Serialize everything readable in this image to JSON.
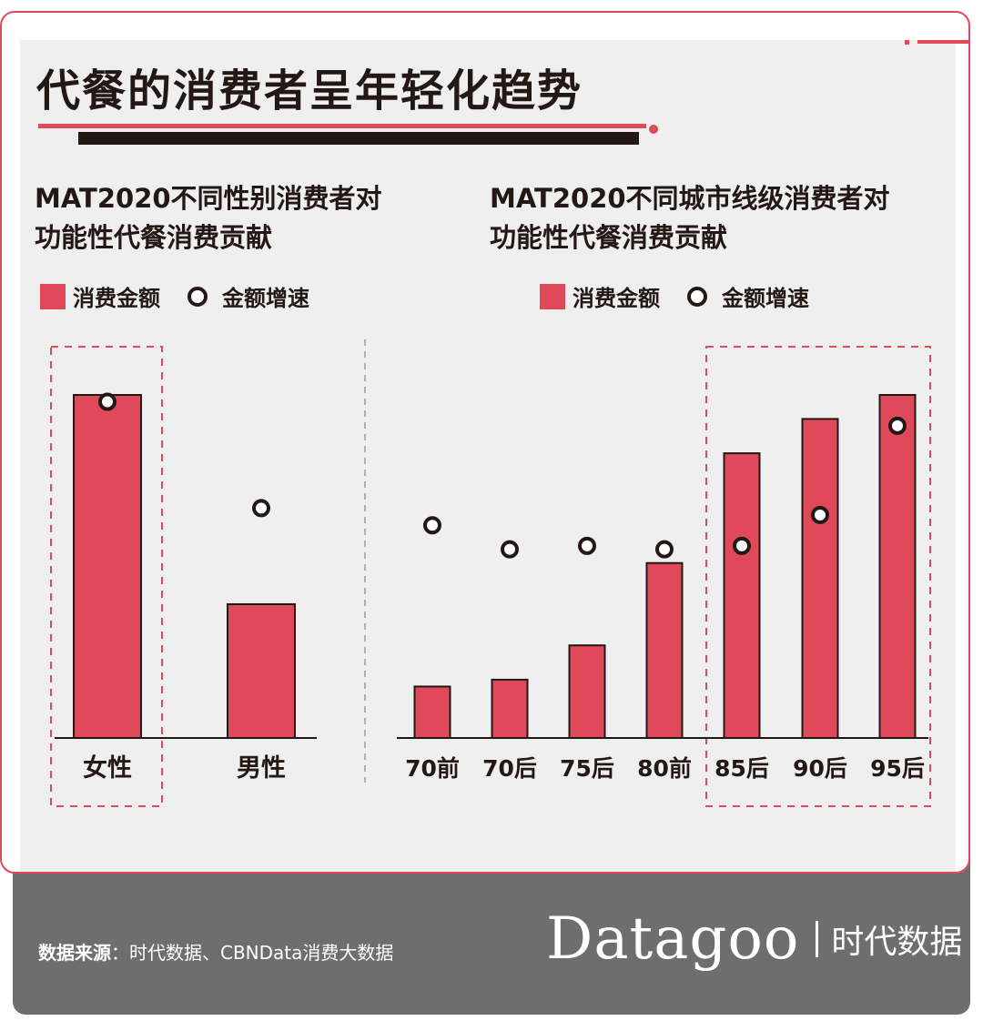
{
  "title": "代餐的消费者呈年轻化趋势",
  "colors": {
    "accent": "#e0495a",
    "dark": "#231815",
    "panel": "#efefef",
    "footer": "#6e6e6e"
  },
  "chart_data": [
    {
      "type": "bar",
      "title_line1": "MAT2020不同性别消费者对",
      "title_line2": "功能性代餐消费贡献",
      "legend": {
        "bar_label": "消费金额",
        "dot_label": "金额增速"
      },
      "categories": [
        "女性",
        "男性"
      ],
      "series": [
        {
          "name": "消费金额",
          "kind": "bar",
          "values": [
            100,
            39
          ]
        },
        {
          "name": "金额增速",
          "kind": "dot",
          "values": [
            98,
            67
          ]
        }
      ],
      "ylim": [
        0,
        100
      ],
      "highlight": [
        "女性"
      ],
      "note": "no numeric axis or data labels shown; values are relative"
    },
    {
      "type": "bar",
      "title_line1": "MAT2020不同城市线级消费者对",
      "title_line2": "功能性代餐消费贡献",
      "legend": {
        "bar_label": "消费金额",
        "dot_label": "金额增速"
      },
      "categories": [
        "70前",
        "70后",
        "75后",
        "80前",
        "85后",
        "90后",
        "95后"
      ],
      "series": [
        {
          "name": "消费金额",
          "kind": "bar",
          "values": [
            15,
            17,
            27,
            51,
            83,
            93,
            100
          ]
        },
        {
          "name": "金额增速",
          "kind": "dot",
          "values": [
            62,
            55,
            56,
            55,
            56,
            65,
            91
          ]
        }
      ],
      "ylim": [
        0,
        100
      ],
      "highlight": [
        "85后",
        "90后",
        "95后"
      ],
      "note": "no numeric axis or data labels shown; values are relative"
    }
  ],
  "footer": {
    "source_label": "数据来源",
    "source_text": "：时代数据、CBNData消费大数据",
    "brand_logo": "Datagoo",
    "brand_cn": "时代数据"
  }
}
